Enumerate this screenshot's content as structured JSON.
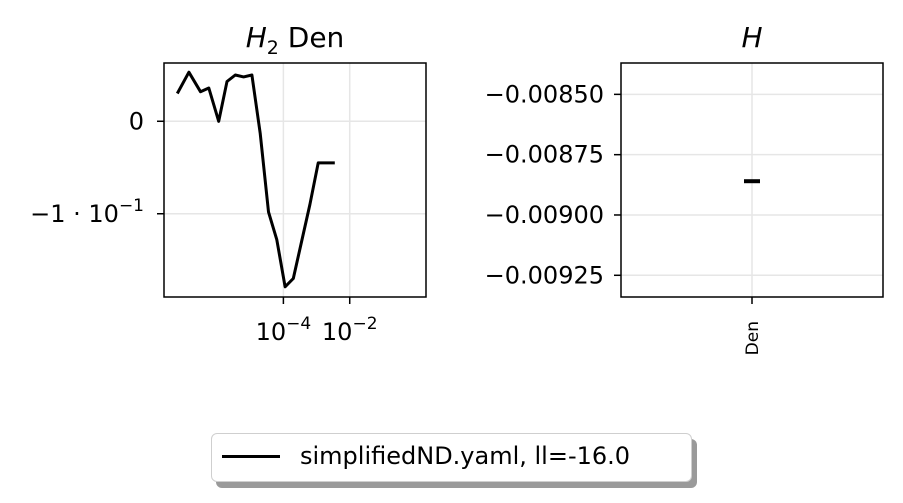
{
  "chart_data": [
    {
      "type": "line",
      "title_main": "H",
      "title_sub": "2",
      "title_rest": " Den",
      "xscale": "log",
      "xlim_exp": [
        -7.6,
        0.3
      ],
      "ylim": [
        -0.19,
        0.063
      ],
      "xticks": [
        {
          "exp": -4,
          "base": "10",
          "sup": "−4"
        },
        {
          "exp": -2,
          "base": "10",
          "sup": "−2"
        }
      ],
      "yticks": [
        {
          "value": 0,
          "label": "0"
        },
        {
          "value": -0.1,
          "label": "−1 · 10",
          "sup": "−1"
        }
      ],
      "grid": true,
      "series": [
        {
          "name": "simplifiedND.yaml, ll=-16.0",
          "color": "#000000",
          "x_exp": [
            -7.2,
            -6.85,
            -6.5,
            -6.25,
            -5.95,
            -5.7,
            -5.45,
            -5.2,
            -4.95,
            -4.7,
            -4.45,
            -4.2,
            -3.95,
            -3.7,
            -3.45,
            -3.2,
            -2.95,
            -2.7,
            -2.45
          ],
          "y": [
            0.03,
            0.053,
            0.032,
            0.036,
            0.0,
            0.043,
            0.05,
            0.048,
            0.05,
            -0.013,
            -0.098,
            -0.128,
            -0.179,
            -0.17,
            -0.13,
            -0.09,
            -0.045,
            -0.045,
            -0.045
          ]
        }
      ]
    },
    {
      "type": "scatter",
      "title": "H",
      "categories": [
        "Den"
      ],
      "ylim": [
        -0.00934,
        -0.00837
      ],
      "yticks": [
        {
          "value": -0.0085,
          "label": "−0.00850"
        },
        {
          "value": -0.00875,
          "label": "−0.00875"
        },
        {
          "value": -0.009,
          "label": "−0.00900"
        },
        {
          "value": -0.00925,
          "label": "−0.00925"
        }
      ],
      "grid": true,
      "series": [
        {
          "name": "simplifiedND.yaml, ll=-16.0",
          "color": "#000000",
          "values": [
            -0.00886
          ]
        }
      ]
    }
  ],
  "legend": {
    "label": "simplifiedND.yaml, ll=-16.0",
    "placement": "bottom-center"
  }
}
